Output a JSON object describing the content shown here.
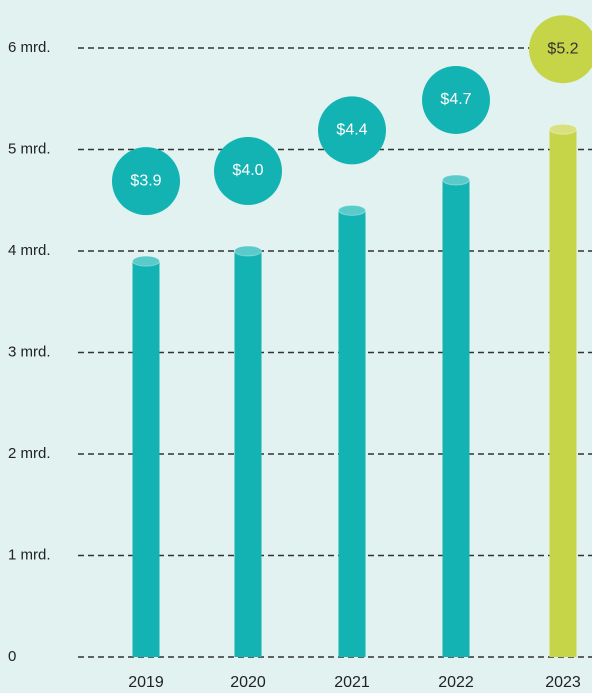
{
  "chart_data": {
    "type": "bar",
    "categories": [
      "2019",
      "2020",
      "2021",
      "2022",
      "2023"
    ],
    "values": [
      3.9,
      4.0,
      4.4,
      4.7,
      5.2
    ],
    "value_labels": [
      "$3.9",
      "$4.0",
      "$4.4",
      "$4.7",
      "$5.2"
    ],
    "colors": [
      "#14b3b3",
      "#14b3b3",
      "#14b3b3",
      "#14b3b3",
      "#c6d548"
    ],
    "ylim": [
      0,
      6
    ],
    "yticks": [
      0,
      {
        "value": 1,
        "label": "1 mrd."
      },
      {
        "value": 2,
        "label": "2 mrd."
      },
      {
        "value": 3,
        "label": "3 mrd."
      },
      {
        "value": 4,
        "label": "4 mrd."
      },
      {
        "value": 5,
        "label": "5 mrd."
      },
      {
        "value": 6,
        "label": "6 mrd."
      }
    ],
    "grid": true
  }
}
